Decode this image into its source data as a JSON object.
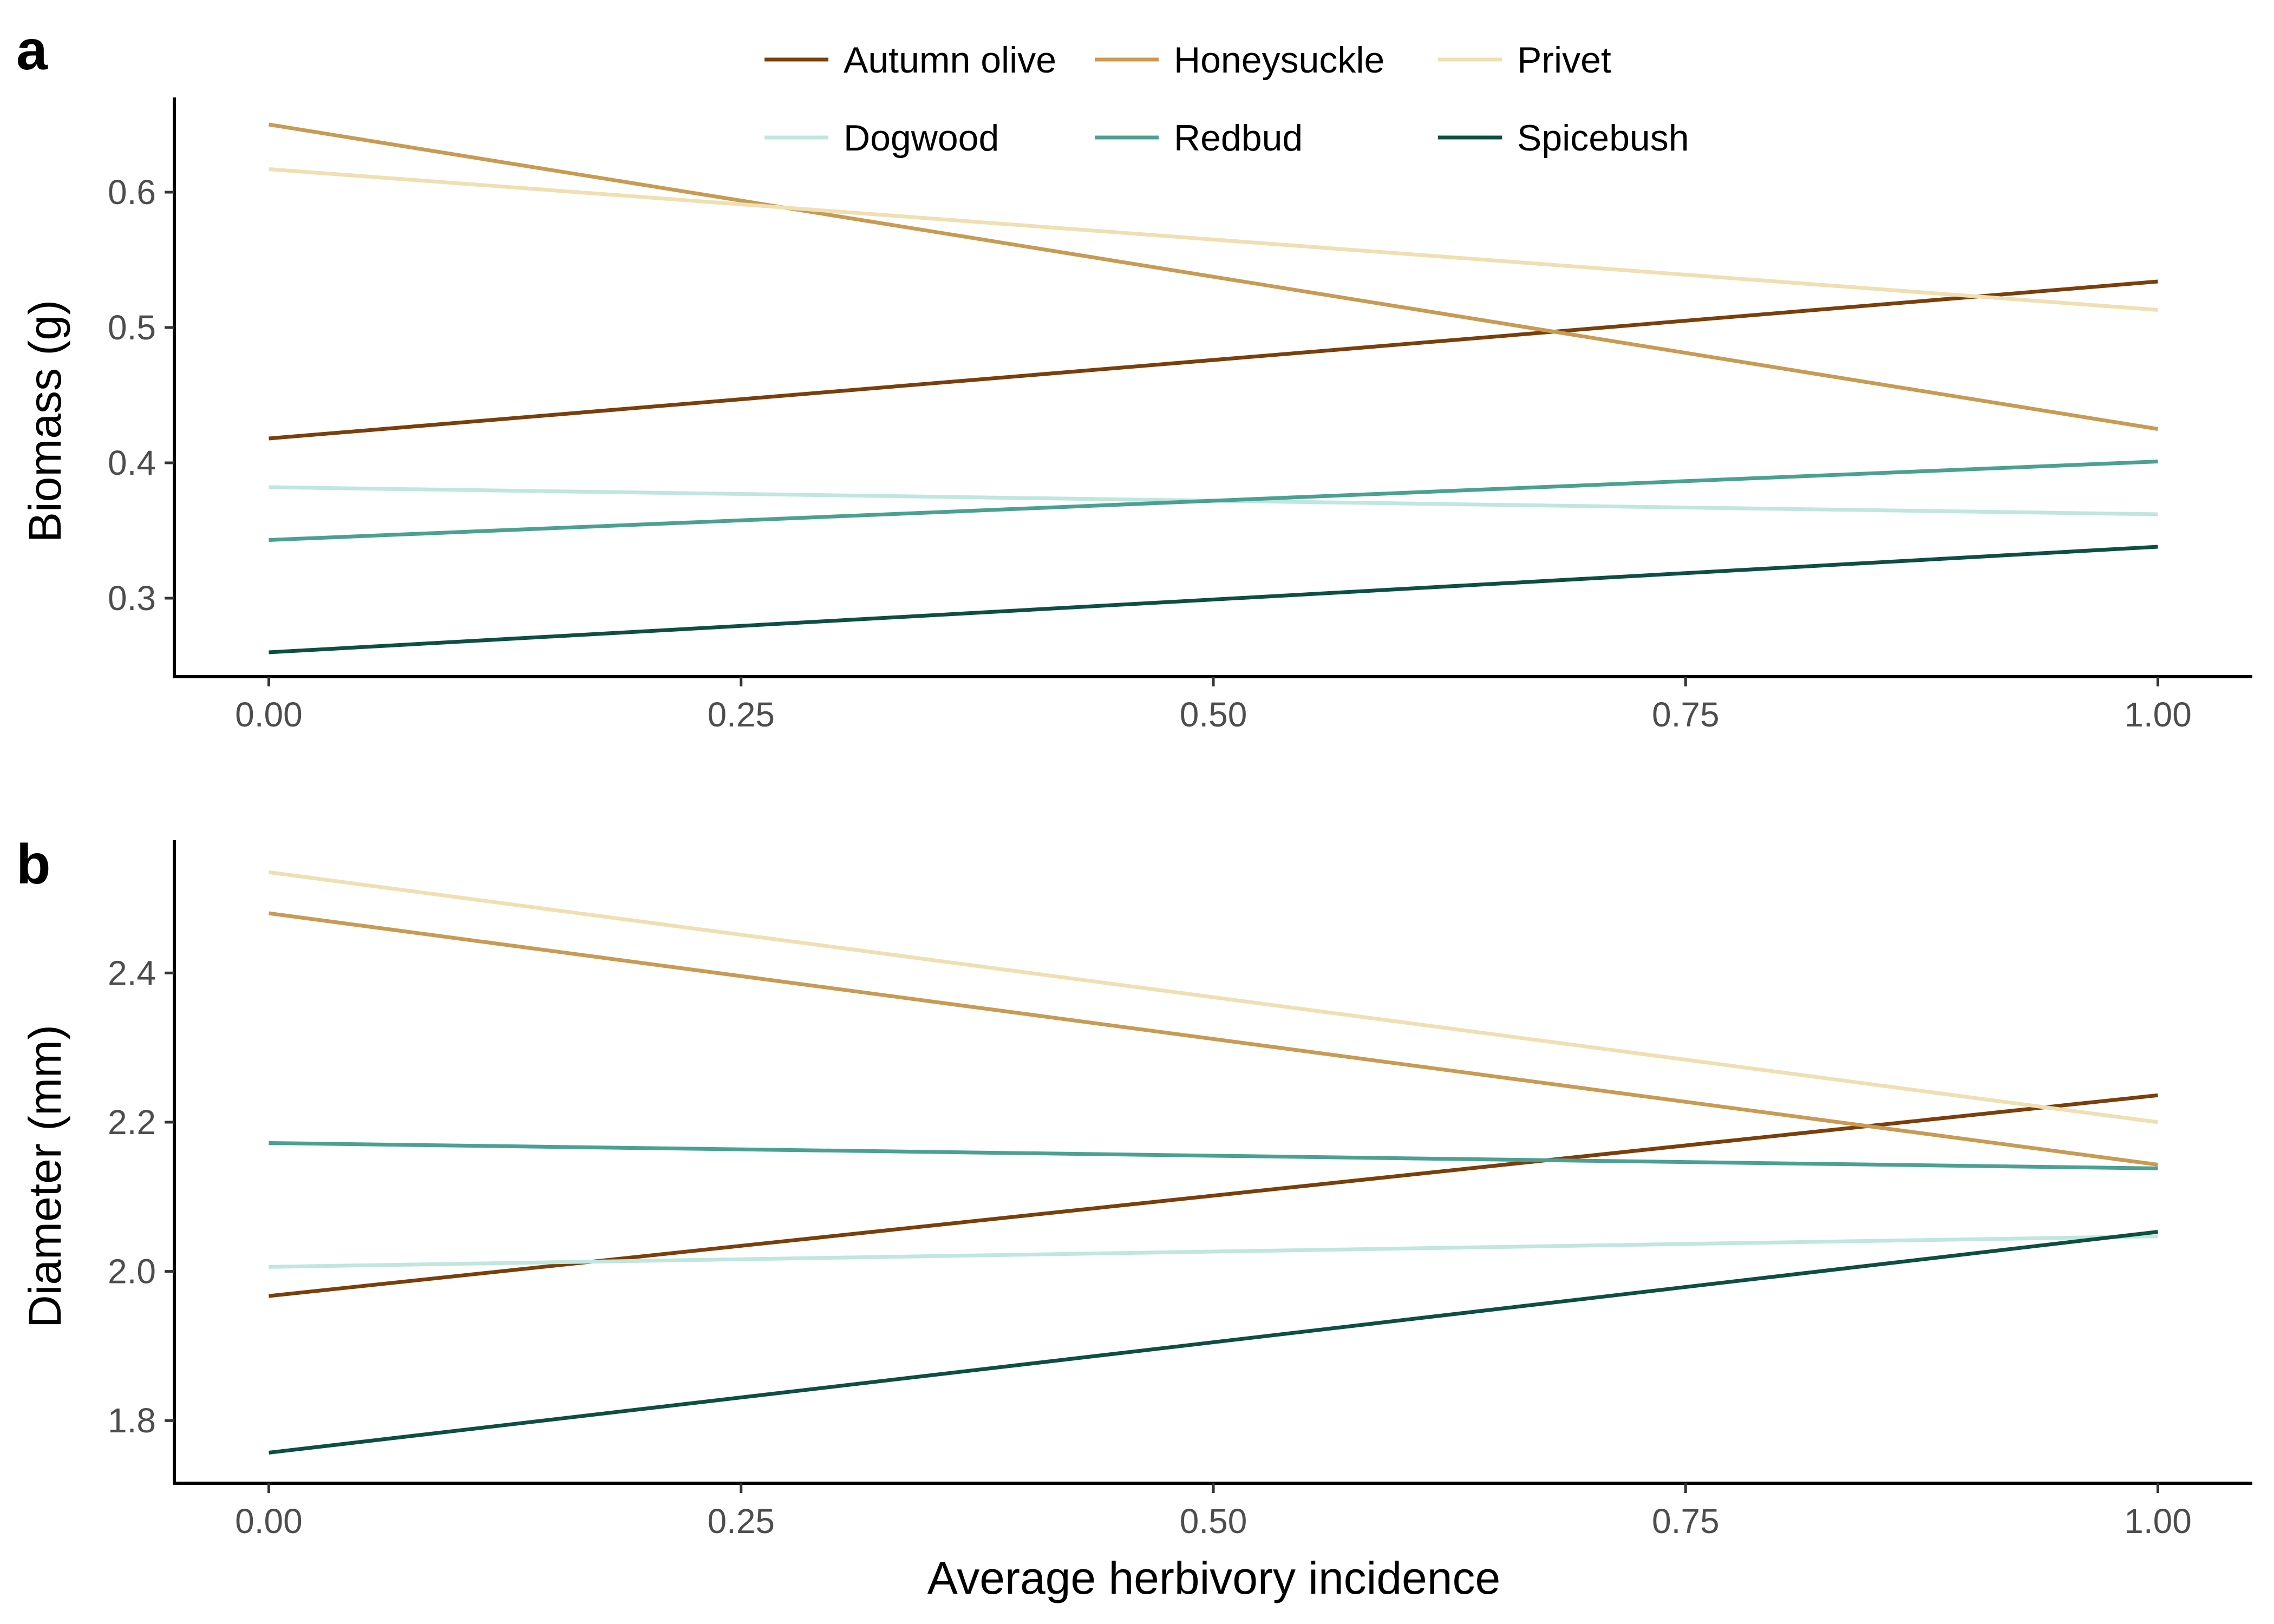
{
  "legend": [
    {
      "name": "Autumn olive",
      "color": "#7a3f0a"
    },
    {
      "name": "Honeysuckle",
      "color": "#c99a52"
    },
    {
      "name": "Privet",
      "color": "#f0dfb2"
    },
    {
      "name": "Dogwood",
      "color": "#bfe6df"
    },
    {
      "name": "Redbud",
      "color": "#4aa193"
    },
    {
      "name": "Spicebush",
      "color": "#0d4f42"
    }
  ],
  "chart_data": [
    {
      "type": "line",
      "panel_label": "a",
      "title": "",
      "xlabel": "",
      "ylabel": "Biomass (g)",
      "xlim": [
        -0.05,
        1.05
      ],
      "ylim": [
        0.242,
        0.67
      ],
      "xticks": [
        0.0,
        0.25,
        0.5,
        0.75,
        1.0
      ],
      "xtick_labels": [
        "0.00",
        "0.25",
        "0.50",
        "0.75",
        "1.00"
      ],
      "yticks": [
        0.3,
        0.4,
        0.5,
        0.6
      ],
      "ytick_labels": [
        "0.3",
        "0.4",
        "0.5",
        "0.6"
      ],
      "grid": false,
      "series": [
        {
          "name": "Autumn olive",
          "x": [
            0,
            1
          ],
          "values": [
            0.418,
            0.534
          ]
        },
        {
          "name": "Honeysuckle",
          "x": [
            0,
            1
          ],
          "values": [
            0.65,
            0.425
          ]
        },
        {
          "name": "Privet",
          "x": [
            0,
            1
          ],
          "values": [
            0.617,
            0.513
          ]
        },
        {
          "name": "Dogwood",
          "x": [
            0,
            1
          ],
          "values": [
            0.382,
            0.362
          ]
        },
        {
          "name": "Redbud",
          "x": [
            0,
            1
          ],
          "values": [
            0.343,
            0.401
          ]
        },
        {
          "name": "Spicebush",
          "x": [
            0,
            1
          ],
          "values": [
            0.26,
            0.338
          ]
        }
      ]
    },
    {
      "type": "line",
      "panel_label": "b",
      "title": "",
      "xlabel": "Average herbivory incidence",
      "ylabel": "Diameter (mm)",
      "xlim": [
        -0.05,
        1.05
      ],
      "ylim": [
        1.716,
        2.578
      ],
      "xticks": [
        0.0,
        0.25,
        0.5,
        0.75,
        1.0
      ],
      "xtick_labels": [
        "0.00",
        "0.25",
        "0.50",
        "0.75",
        "1.00"
      ],
      "yticks": [
        1.8,
        2.0,
        2.2,
        2.4
      ],
      "ytick_labels": [
        "1.8",
        "2.0",
        "2.2",
        "2.4"
      ],
      "grid": false,
      "series": [
        {
          "name": "Autumn olive",
          "x": [
            0,
            1
          ],
          "values": [
            1.967,
            2.236
          ]
        },
        {
          "name": "Honeysuckle",
          "x": [
            0,
            1
          ],
          "values": [
            2.48,
            2.143
          ]
        },
        {
          "name": "Privet",
          "x": [
            0,
            1
          ],
          "values": [
            2.535,
            2.2
          ]
        },
        {
          "name": "Dogwood",
          "x": [
            0,
            1
          ],
          "values": [
            2.006,
            2.047
          ]
        },
        {
          "name": "Redbud",
          "x": [
            0,
            1
          ],
          "values": [
            2.172,
            2.138
          ]
        },
        {
          "name": "Spicebush",
          "x": [
            0,
            1
          ],
          "values": [
            1.757,
            2.053
          ]
        }
      ]
    }
  ]
}
